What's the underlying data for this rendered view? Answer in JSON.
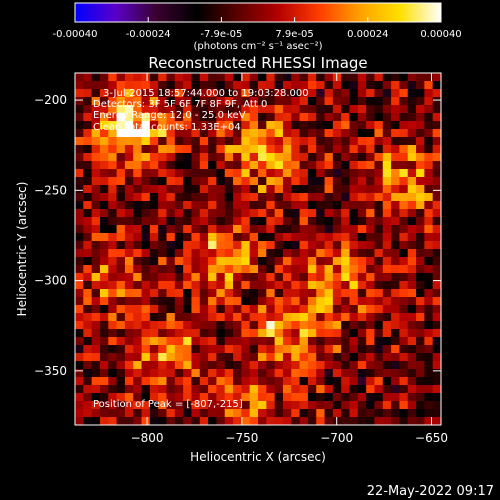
{
  "colorbar": {
    "ticks": [
      "-0.00040",
      "-0.00024",
      "-7.9e-05",
      "7.9e-05",
      "0.00024",
      "0.00040"
    ],
    "units_label": "(photons cm⁻² s⁻¹ asec⁻²)",
    "colormap": [
      "#0000ff",
      "#5a00c8",
      "#3a0030",
      "#000000",
      "#5a0000",
      "#b40000",
      "#ff3c00",
      "#ffa000",
      "#ffe000",
      "#ffffff"
    ]
  },
  "chart_data": {
    "type": "heatmap",
    "title": "Reconstructed RHESSI Image",
    "xlabel": "Heliocentric X (arcsec)",
    "ylabel": "Heliocentric Y (arcsec)",
    "xlim": [
      -838,
      -645
    ],
    "ylim": [
      -380,
      -185
    ],
    "xticks": [
      -800,
      -750,
      -700,
      -650
    ],
    "yticks": [
      -200,
      -250,
      -300,
      -350
    ],
    "xtick_labels": [
      "−800",
      "−750",
      "−700",
      "−650"
    ],
    "ytick_labels": [
      "−200",
      "−250",
      "−300",
      "−350"
    ],
    "value_range": [
      -0.0004,
      0.0004
    ],
    "hot_spots": [
      {
        "x": -807,
        "y": -215,
        "v": 0.0004
      },
      {
        "x": -738,
        "y": -228,
        "v": 0.00036
      },
      {
        "x": -760,
        "y": -290,
        "v": 0.0003
      },
      {
        "x": -700,
        "y": -300,
        "v": 0.00026
      },
      {
        "x": -725,
        "y": -330,
        "v": 0.00028
      },
      {
        "x": -790,
        "y": -340,
        "v": 0.00024
      },
      {
        "x": -665,
        "y": -245,
        "v": 0.00026
      },
      {
        "x": -745,
        "y": -365,
        "v": 0.0002
      },
      {
        "x": -820,
        "y": -300,
        "v": 0.00016
      }
    ],
    "annotations": [
      "3-Jul-2015 18:57:44.000 to 19:03:28.000",
      "Detectors: 3F 5F 6F 7F 8F 9F, Att 0",
      "Energy Range: 12.0 - 25.0 keV",
      "Clean    Total counts: 1.33E+04",
      "Position of Peak = [-807,-215]"
    ]
  },
  "footer": {
    "timestamp": "22-May-2022 09:17"
  }
}
